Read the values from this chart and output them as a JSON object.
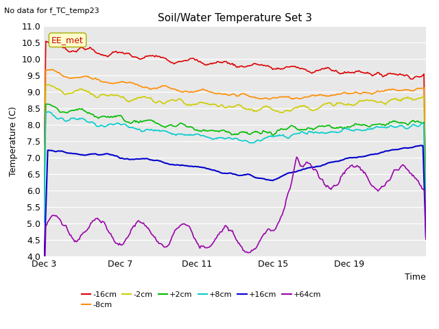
{
  "title": "Soil/Water Temperature Set 3",
  "subtitle": "No data for f_TC_temp23",
  "xlabel": "Time",
  "ylabel": "Temperature (C)",
  "ylim": [
    4.0,
    11.0
  ],
  "xtick_labels": [
    "Dec 3",
    "Dec 7",
    "Dec 11",
    "Dec 15",
    "Dec 19"
  ],
  "xtick_positions": [
    0,
    4,
    8,
    12,
    16
  ],
  "n_days": 20,
  "annotation_text": "EE_met",
  "annotation_color": "#cc0000",
  "annotation_bg": "#ffffcc",
  "annotation_border": "#aaaa00",
  "bg_color": "#e8e8e8",
  "grid_color": "white",
  "series": [
    {
      "label": "-16cm",
      "color": "#dd0000"
    },
    {
      "label": "-8cm",
      "color": "#ff8c00"
    },
    {
      "label": "-2cm",
      "color": "#cccc00"
    },
    {
      "label": "+2cm",
      "color": "#00bb00"
    },
    {
      "label": "+8cm",
      "color": "#00cccc"
    },
    {
      "label": "+16cm",
      "color": "#0000cc"
    },
    {
      "label": "+64cm",
      "color": "#9900aa"
    }
  ]
}
